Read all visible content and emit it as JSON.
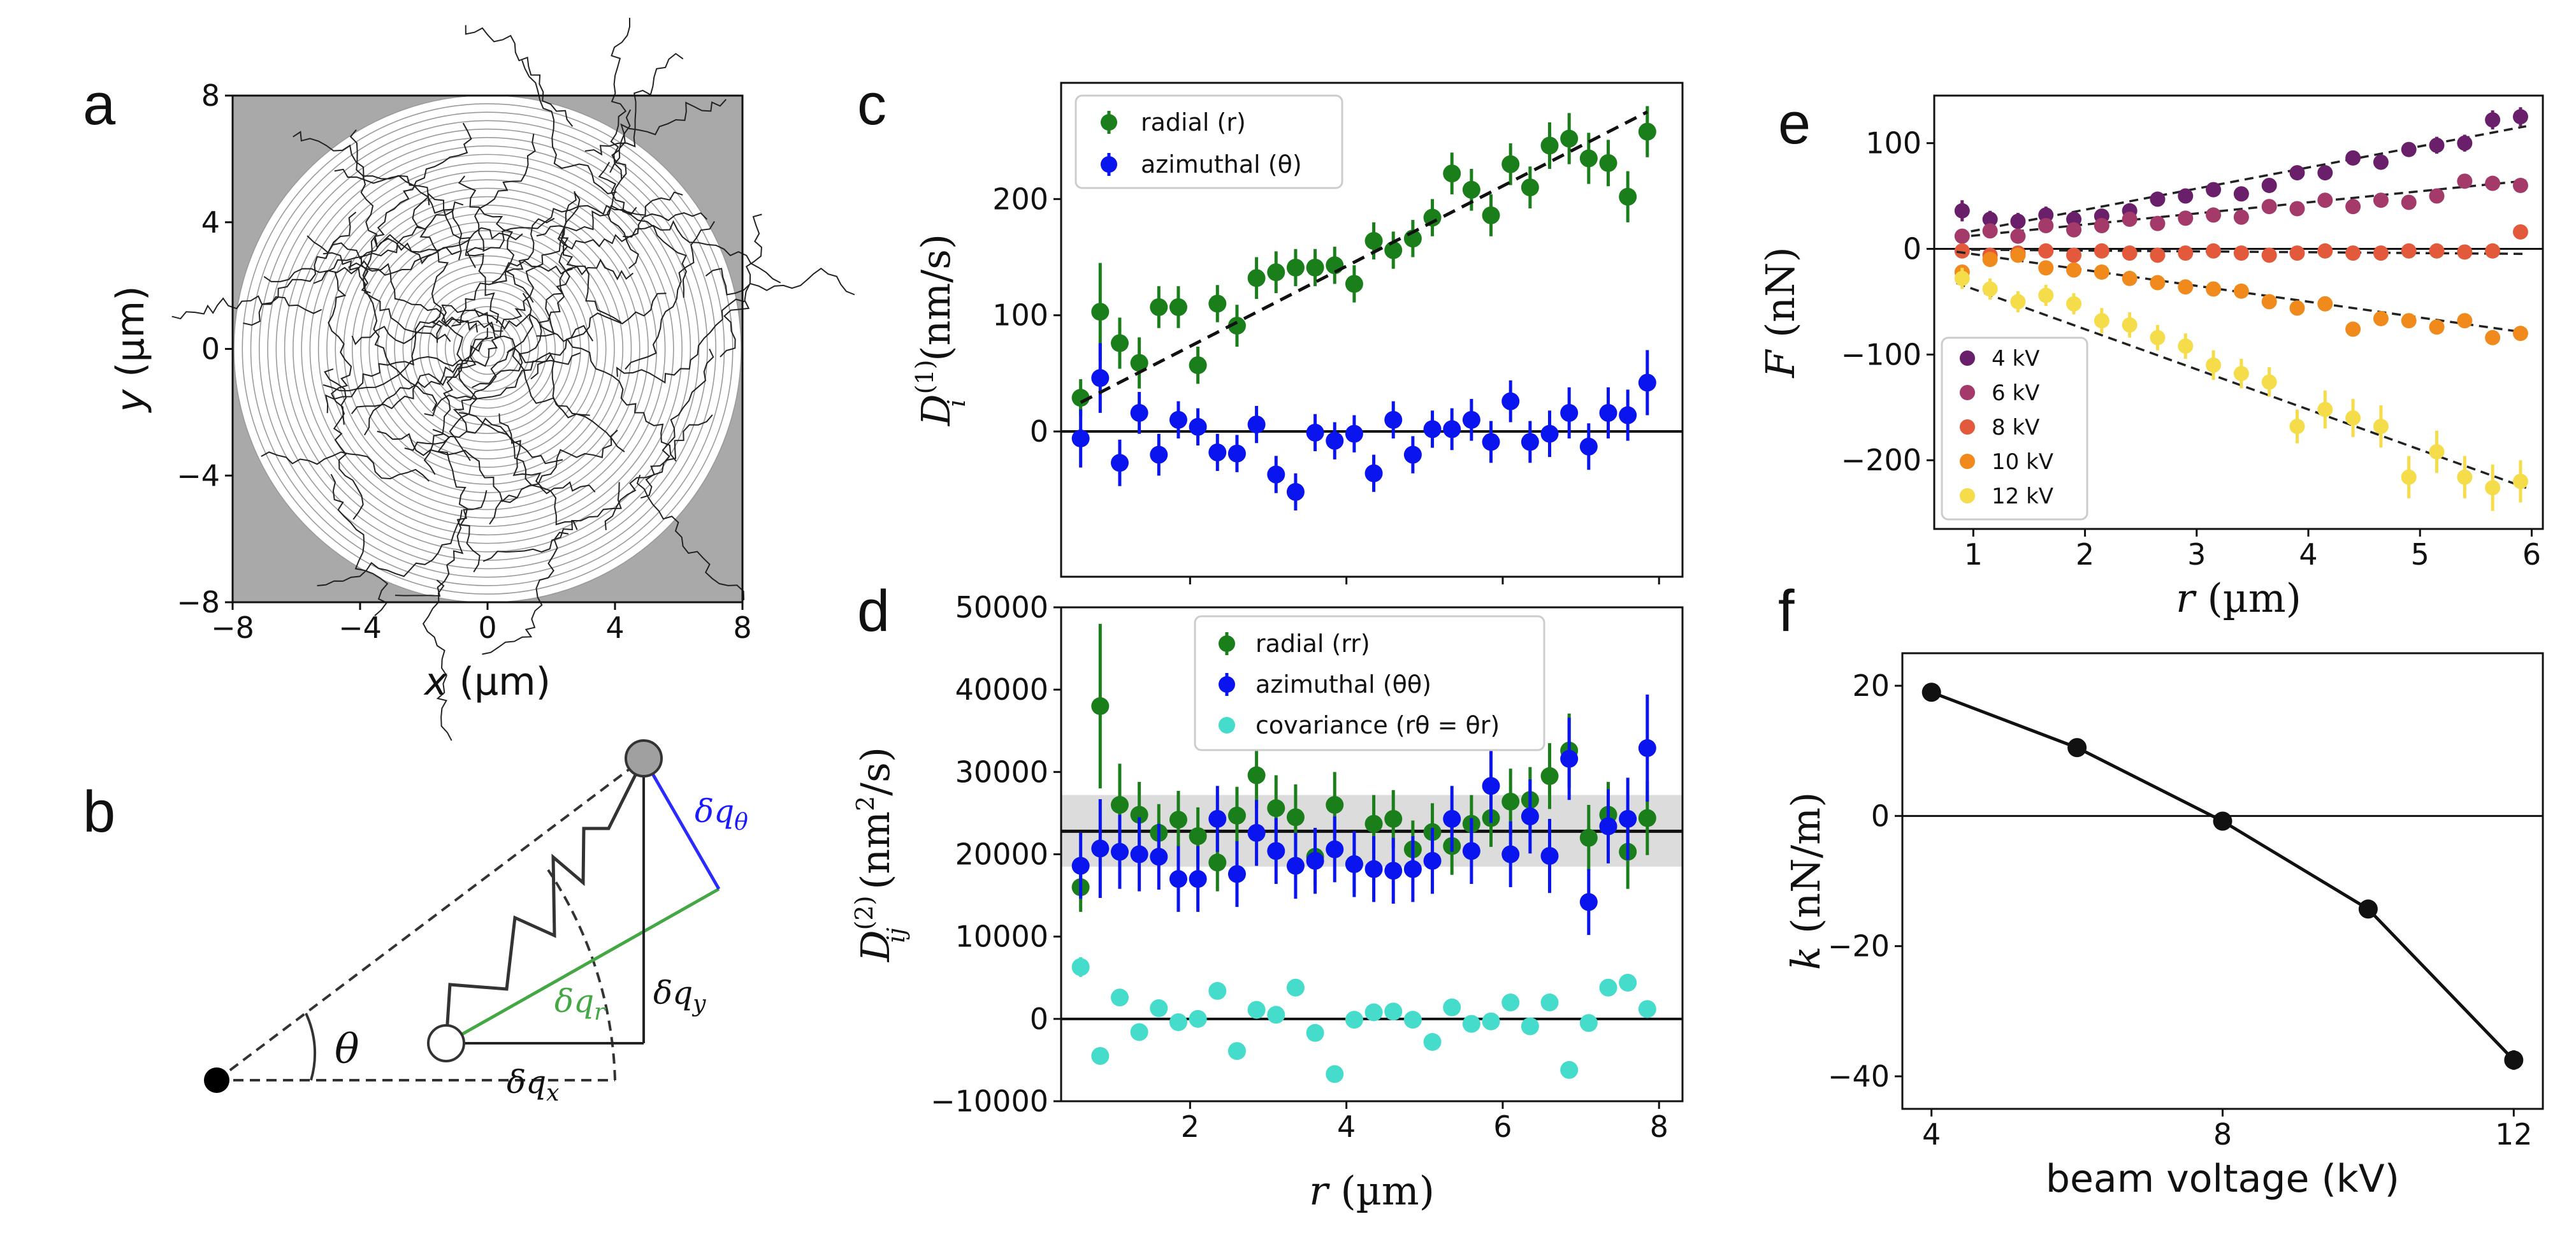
{
  "panel_labels": {
    "a": "a",
    "b": "b",
    "c": "c",
    "d": "d",
    "e": "e",
    "f": "f"
  },
  "colors": {
    "green": "#1a7f1a",
    "blue": "#0a14ee",
    "cyan": "#45dccc",
    "e_4kV": "#6a1f6b",
    "e_6kV": "#a33a6a",
    "e_8kV": "#e25a3b",
    "e_10kV": "#f08a1c",
    "e_12kV": "#f5dc4a"
  },
  "diagram_b": {
    "theta": "θ",
    "dq_theta": "δq",
    "dq_theta_sub": "θ",
    "dq_r": "δq",
    "dq_r_sub": "r",
    "dq_y": "δq",
    "dq_y_sub": "y",
    "dq_x": "δq",
    "dq_x_sub": "x"
  },
  "chart_data": [
    {
      "id": "a",
      "type": "scatter",
      "title": "",
      "xlabel_var": "x",
      "xlabel_unit": " (µm)",
      "ylabel_var": "y",
      "ylabel_unit": " (µm)",
      "xlim": [
        -8,
        8
      ],
      "ylim": [
        -8,
        8
      ],
      "xticks": [
        "−8",
        "−4",
        "0",
        "4",
        "8"
      ],
      "yticks": [
        "−8",
        "−4",
        "0",
        "4",
        "8"
      ],
      "background": "#a9a9a9",
      "content": "trajectories inside circular region with concentric bins"
    },
    {
      "id": "c",
      "type": "scatter",
      "ylabel_main": "D",
      "ylabel_sup": "(1)",
      "ylabel_sub": "i",
      "ylabel_unit": " (nm/s)",
      "xlim": [
        0.35,
        8.3
      ],
      "ylim": [
        -125,
        300
      ],
      "yticks": [
        "0",
        "100",
        "200"
      ],
      "legend": [
        "radial (r)",
        "azimuthal (θ)"
      ],
      "series": [
        {
          "name": "radial (r)",
          "color_key": "green",
          "x": [
            0.6,
            0.85,
            1.1,
            1.35,
            1.6,
            1.85,
            2.1,
            2.35,
            2.6,
            2.85,
            3.1,
            3.35,
            3.6,
            3.85,
            4.1,
            4.35,
            4.6,
            4.85,
            5.1,
            5.35,
            5.6,
            5.85,
            6.1,
            6.35,
            6.6,
            6.85,
            7.1,
            7.35,
            7.6,
            7.85
          ],
          "y": [
            29,
            103,
            76,
            59,
            107,
            107,
            57,
            110,
            91,
            132,
            137,
            141,
            141,
            143,
            127,
            164,
            156,
            166,
            184,
            222,
            208,
            186,
            230,
            210,
            246,
            252,
            235,
            231,
            202,
            258
          ],
          "err": [
            16,
            42,
            22,
            22,
            18,
            18,
            16,
            16,
            18,
            18,
            18,
            16,
            16,
            16,
            16,
            16,
            16,
            16,
            16,
            18,
            18,
            18,
            18,
            18,
            20,
            22,
            22,
            20,
            22,
            22
          ]
        },
        {
          "name": "azimuthal (θ)",
          "color_key": "blue",
          "x": [
            0.6,
            0.85,
            1.1,
            1.35,
            1.6,
            1.85,
            2.1,
            2.35,
            2.6,
            2.85,
            3.1,
            3.35,
            3.6,
            3.85,
            4.1,
            4.35,
            4.6,
            4.85,
            5.1,
            5.35,
            5.6,
            5.85,
            6.1,
            6.35,
            6.6,
            6.85,
            7.1,
            7.35,
            7.6,
            7.85
          ],
          "y": [
            -6,
            46,
            -27,
            16,
            -20,
            10,
            4,
            -18,
            -19,
            6,
            -37,
            -52,
            -1,
            -8,
            -2,
            -36,
            10,
            -20,
            2,
            2,
            10,
            -9,
            26,
            -9,
            -2,
            16,
            -13,
            16,
            14,
            42
          ],
          "err": [
            25,
            30,
            20,
            18,
            18,
            16,
            16,
            16,
            16,
            16,
            16,
            16,
            16,
            16,
            16,
            16,
            16,
            16,
            16,
            18,
            18,
            18,
            18,
            18,
            20,
            22,
            20,
            22,
            22,
            28
          ]
        }
      ],
      "fit_line": {
        "x": [
          0.6,
          7.85
        ],
        "y": [
          25,
          275
        ]
      },
      "zero_line": 0
    },
    {
      "id": "d",
      "type": "scatter",
      "xlabel_var": "r",
      "xlabel_unit": " (µm)",
      "ylabel_main": "D",
      "ylabel_sup": "(2)",
      "ylabel_sub": "ij",
      "ylabel_unit": " (nm",
      "ylabel_unit_sup": "2",
      "ylabel_unit_tail": "/s)",
      "xlim": [
        0.35,
        8.3
      ],
      "ylim": [
        -10000,
        50000
      ],
      "xticks": [
        "2",
        "4",
        "6",
        "8"
      ],
      "yticks": [
        "−10000",
        "0",
        "10000",
        "20000",
        "30000",
        "40000",
        "50000"
      ],
      "legend": [
        "radial (rr)",
        "azimuthal (θθ)",
        "covariance (rθ = θr)"
      ],
      "band": {
        "y0": 18500,
        "y1": 27200,
        "mean": 22800
      },
      "series": [
        {
          "name": "radial (rr)",
          "color_key": "green",
          "x": [
            0.6,
            0.85,
            1.1,
            1.35,
            1.6,
            1.85,
            2.1,
            2.35,
            2.6,
            2.85,
            3.1,
            3.35,
            3.6,
            3.85,
            4.1,
            4.35,
            4.6,
            4.85,
            5.1,
            5.35,
            5.6,
            5.85,
            6.1,
            6.35,
            6.6,
            6.85,
            7.1,
            7.35,
            7.6,
            7.85
          ],
          "y": [
            16000,
            38000,
            26000,
            24800,
            22600,
            24200,
            22200,
            19000,
            24700,
            29600,
            25600,
            24500,
            19700,
            26000,
            18800,
            23700,
            24300,
            20600,
            22700,
            21000,
            23700,
            24400,
            26400,
            26600,
            29500,
            32600,
            22000,
            24800,
            20300,
            24400
          ],
          "err": [
            3000,
            10000,
            5000,
            4000,
            3500,
            3500,
            3500,
            3500,
            3500,
            4000,
            4000,
            4000,
            3500,
            4000,
            3500,
            3500,
            3500,
            3500,
            3500,
            3500,
            3500,
            3500,
            4000,
            4000,
            4000,
            4500,
            4000,
            4000,
            4500,
            4500
          ]
        },
        {
          "name": "azimuthal (θθ)",
          "color_key": "blue",
          "x": [
            0.6,
            0.85,
            1.1,
            1.35,
            1.6,
            1.85,
            2.1,
            2.35,
            2.6,
            2.85,
            3.1,
            3.35,
            3.6,
            3.85,
            4.1,
            4.35,
            4.6,
            4.85,
            5.1,
            5.35,
            5.6,
            5.85,
            6.1,
            6.35,
            6.6,
            6.85,
            7.1,
            7.35,
            7.6,
            7.85
          ],
          "y": [
            18600,
            20700,
            20300,
            20000,
            19700,
            17000,
            17000,
            24300,
            17600,
            22600,
            20400,
            18600,
            19200,
            20600,
            18800,
            18200,
            18000,
            18200,
            19200,
            24300,
            20400,
            28300,
            20000,
            24600,
            19800,
            31600,
            14200,
            23400,
            24300,
            32900
          ],
          "err": [
            4000,
            6000,
            4500,
            4500,
            4000,
            4000,
            4000,
            4000,
            4000,
            4000,
            4000,
            4000,
            4000,
            4000,
            4000,
            4000,
            4000,
            4000,
            4000,
            4000,
            4000,
            4500,
            4000,
            4500,
            4500,
            5000,
            4000,
            4500,
            5000,
            6500
          ]
        },
        {
          "name": "covariance (rθ = θr)",
          "color_key": "cyan",
          "x": [
            0.6,
            0.85,
            1.1,
            1.35,
            1.6,
            1.85,
            2.1,
            2.35,
            2.6,
            2.85,
            3.1,
            3.35,
            3.6,
            3.85,
            4.1,
            4.35,
            4.6,
            4.85,
            5.1,
            5.35,
            5.6,
            5.85,
            6.1,
            6.35,
            6.6,
            6.85,
            7.1,
            7.35,
            7.6,
            7.85
          ],
          "y": [
            6300,
            -4500,
            2600,
            -1600,
            1300,
            -400,
            0,
            3400,
            -3900,
            1100,
            500,
            3800,
            -1700,
            -6700,
            -100,
            800,
            900,
            -100,
            -2800,
            1400,
            -600,
            -300,
            2000,
            -900,
            2000,
            -6200,
            -500,
            3800,
            4400,
            1200
          ],
          "err": [
            1200,
            1000,
            0,
            0,
            0,
            0,
            0,
            0,
            0,
            0,
            0,
            0,
            0,
            0,
            0,
            0,
            0,
            0,
            0,
            0,
            0,
            0,
            0,
            0,
            0,
            0,
            0,
            0,
            0,
            0
          ]
        }
      ],
      "zero_line": 0
    },
    {
      "id": "e",
      "type": "scatter",
      "xlabel_var": "r",
      "xlabel_unit": " (µm)",
      "ylabel_var": "F",
      "ylabel_unit": " (nN)",
      "xlim": [
        0.65,
        6.1
      ],
      "ylim": [
        -265,
        145
      ],
      "xticks": [
        "1",
        "2",
        "3",
        "4",
        "5",
        "6"
      ],
      "yticks": [
        "−200",
        "−100",
        "0",
        "100"
      ],
      "legend": [
        "4 kV",
        "6 kV",
        "8 kV",
        "10 kV",
        "12 kV"
      ],
      "series": [
        {
          "name": "4 kV",
          "color_key": "e_4kV",
          "slope": 20,
          "intercept": -3,
          "x": [
            0.9,
            1.15,
            1.4,
            1.65,
            1.9,
            2.15,
            2.4,
            2.65,
            2.9,
            3.15,
            3.4,
            3.65,
            3.9,
            4.15,
            4.4,
            4.65,
            4.9,
            5.15,
            5.4,
            5.65,
            5.9
          ],
          "y": [
            36,
            28,
            26,
            32,
            28,
            31,
            36,
            47,
            50,
            56,
            52,
            60,
            72,
            72,
            86,
            82,
            94,
            98,
            100,
            122,
            125
          ],
          "err": [
            10,
            8,
            8,
            8,
            7,
            7,
            7,
            7,
            7,
            7,
            7,
            7,
            7,
            7,
            7,
            7,
            7,
            8,
            8,
            9,
            9
          ]
        },
        {
          "name": "6 kV",
          "color_key": "e_6kV",
          "slope": 10.5,
          "intercept": 2,
          "x": [
            0.9,
            1.15,
            1.4,
            1.65,
            1.9,
            2.15,
            2.4,
            2.65,
            2.9,
            3.15,
            3.4,
            3.65,
            3.9,
            4.15,
            4.4,
            4.65,
            4.9,
            5.15,
            5.4,
            5.65,
            5.9
          ],
          "y": [
            12,
            17,
            12,
            22,
            18,
            22,
            28,
            24,
            29,
            32,
            30,
            40,
            38,
            46,
            40,
            46,
            44,
            50,
            64,
            62,
            60
          ],
          "err": [
            7,
            6,
            6,
            6,
            6,
            6,
            6,
            6,
            6,
            6,
            6,
            6,
            6,
            6,
            6,
            6,
            6,
            6,
            6,
            6,
            6
          ]
        },
        {
          "name": "8 kV",
          "color_key": "e_8kV",
          "slope": -0.8,
          "intercept": 0,
          "x": [
            0.9,
            1.15,
            1.4,
            1.65,
            1.9,
            2.15,
            2.4,
            2.65,
            2.9,
            3.15,
            3.4,
            3.65,
            3.9,
            4.15,
            4.4,
            4.65,
            4.9,
            5.15,
            5.4,
            5.65,
            5.9
          ],
          "y": [
            -2,
            -6,
            -4,
            -2,
            -6,
            -2,
            -4,
            -6,
            -4,
            -2,
            -4,
            -6,
            -4,
            -2,
            -4,
            -4,
            -2,
            -2,
            -3,
            -2,
            16
          ],
          "err": [
            6,
            6,
            6,
            6,
            6,
            6,
            6,
            6,
            6,
            6,
            6,
            6,
            6,
            6,
            6,
            6,
            6,
            6,
            6,
            6,
            6
          ]
        },
        {
          "name": "10 kV",
          "color_key": "e_10kV",
          "slope": -15,
          "intercept": 10,
          "x": [
            0.9,
            1.15,
            1.4,
            1.65,
            1.9,
            2.15,
            2.4,
            2.65,
            2.9,
            3.15,
            3.4,
            3.65,
            3.9,
            4.15,
            4.4,
            4.65,
            4.9,
            5.15,
            5.4,
            5.65,
            5.9
          ],
          "y": [
            -22,
            -10,
            -6,
            -18,
            -20,
            -22,
            -28,
            -32,
            -36,
            -38,
            -40,
            -50,
            -56,
            -52,
            -76,
            -66,
            -68,
            -74,
            -68,
            -84,
            -80
          ],
          "err": [
            6,
            6,
            6,
            6,
            6,
            6,
            6,
            6,
            6,
            6,
            6,
            6,
            6,
            6,
            6,
            6,
            6,
            6,
            6,
            6,
            6
          ]
        },
        {
          "name": "12 kV",
          "color_key": "e_12kV",
          "slope": -38,
          "intercept": 0,
          "x": [
            0.9,
            1.15,
            1.4,
            1.65,
            1.9,
            2.15,
            2.4,
            2.65,
            2.9,
            3.15,
            3.4,
            3.65,
            3.9,
            4.15,
            4.4,
            4.65,
            4.9,
            5.15,
            5.4,
            5.65,
            5.9
          ],
          "y": [
            -28,
            -38,
            -50,
            -44,
            -52,
            -68,
            -72,
            -84,
            -92,
            -110,
            -118,
            -126,
            -168,
            -152,
            -160,
            -168,
            -216,
            -192,
            -216,
            -226,
            -220
          ],
          "err": [
            10,
            10,
            10,
            10,
            10,
            12,
            12,
            12,
            12,
            14,
            14,
            14,
            16,
            18,
            18,
            20,
            20,
            20,
            20,
            22,
            20
          ]
        }
      ],
      "zero_line": 0
    },
    {
      "id": "f",
      "type": "line",
      "xlabel": "beam voltage (kV)",
      "ylabel_var": "k",
      "ylabel_unit": " (nN/m)",
      "xlim": [
        3.6,
        12.4
      ],
      "ylim": [
        -45,
        25
      ],
      "xticks": [
        "4",
        "8",
        "12"
      ],
      "yticks": [
        "−40",
        "−20",
        "0",
        "20"
      ],
      "x": [
        4,
        6,
        8,
        10,
        12
      ],
      "y": [
        19,
        10.5,
        -0.8,
        -14.3,
        -37.5
      ],
      "err": [
        0,
        0,
        0,
        0,
        1.5
      ],
      "zero_line": 0
    }
  ]
}
